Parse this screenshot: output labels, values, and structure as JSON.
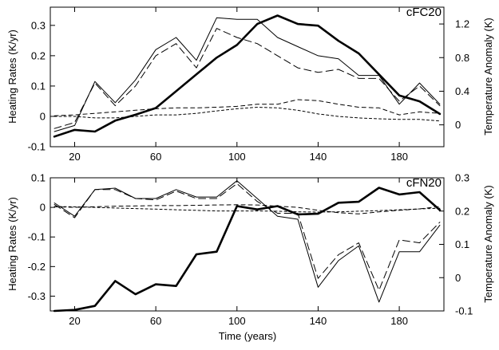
{
  "chart_data": [
    {
      "type": "line",
      "title": "cFC20",
      "xlabel": "",
      "ylabel": "Heating Rates (K/yr)",
      "y2label": "Temperature Anomaly (K)",
      "xlim": [
        8,
        202
      ],
      "ylim": [
        -0.1,
        0.36
      ],
      "y2lim": [
        -0.26,
        1.4
      ],
      "xticks": [
        20,
        60,
        100,
        140,
        180
      ],
      "yticks": [
        -0.1,
        0,
        0.1,
        0.2,
        0.3
      ],
      "ytick_labels": [
        "-0.1",
        "0",
        "0.1",
        "0.2",
        "0.3"
      ],
      "y2ticks": [
        0,
        0.4,
        0.8,
        1.2
      ],
      "y2tick_labels": [
        "0",
        "0.4",
        "0.8",
        "1.2"
      ],
      "grid": false,
      "series": [
        {
          "style": "thin-solid",
          "axis": "left",
          "x": [
            10,
            20,
            30,
            40,
            50,
            60,
            70,
            80,
            90,
            100,
            110,
            120,
            130,
            140,
            150,
            160,
            170,
            180,
            190,
            200
          ],
          "y": [
            -0.05,
            -0.03,
            0.115,
            0.045,
            0.12,
            0.22,
            0.26,
            0.185,
            0.325,
            0.32,
            0.32,
            0.26,
            0.23,
            0.2,
            0.19,
            0.135,
            0.135,
            0.04,
            0.11,
            0.04
          ]
        },
        {
          "style": "long-dash",
          "axis": "left",
          "x": [
            10,
            20,
            30,
            40,
            50,
            60,
            70,
            80,
            90,
            100,
            110,
            120,
            130,
            140,
            150,
            160,
            170,
            180,
            190,
            200
          ],
          "y": [
            -0.04,
            -0.02,
            0.11,
            0.035,
            0.1,
            0.2,
            0.24,
            0.16,
            0.29,
            0.26,
            0.24,
            0.2,
            0.16,
            0.145,
            0.155,
            0.125,
            0.125,
            0.05,
            0.1,
            0.035
          ]
        },
        {
          "style": "short-dash",
          "axis": "left",
          "x": [
            10,
            20,
            30,
            40,
            50,
            60,
            70,
            80,
            90,
            100,
            110,
            120,
            130,
            140,
            150,
            160,
            170,
            180,
            190,
            200
          ],
          "y": [
            0.002,
            0.005,
            0.01,
            0.015,
            0.02,
            0.025,
            0.028,
            0.028,
            0.03,
            0.033,
            0.04,
            0.04,
            0.055,
            0.052,
            0.04,
            0.03,
            0.028,
            0.005,
            0.015,
            0.01
          ]
        },
        {
          "style": "dashed",
          "axis": "left",
          "x": [
            10,
            20,
            30,
            40,
            50,
            60,
            70,
            80,
            90,
            100,
            110,
            120,
            130,
            140,
            150,
            160,
            170,
            180,
            190,
            200
          ],
          "y": [
            0.0,
            0.0,
            -0.005,
            -0.005,
            0.0,
            0.005,
            0.005,
            0.01,
            0.018,
            0.025,
            0.03,
            0.028,
            0.02,
            0.008,
            0.0,
            -0.005,
            -0.008,
            -0.01,
            -0.01,
            -0.015
          ]
        },
        {
          "style": "thick-solid",
          "axis": "right",
          "x": [
            10,
            20,
            30,
            40,
            50,
            60,
            70,
            80,
            90,
            100,
            110,
            120,
            130,
            140,
            150,
            160,
            170,
            180,
            190,
            200
          ],
          "y": [
            -0.14,
            -0.06,
            -0.08,
            0.05,
            0.12,
            0.2,
            0.4,
            0.6,
            0.8,
            0.95,
            1.2,
            1.3,
            1.2,
            1.18,
            1.0,
            0.85,
            0.6,
            0.35,
            0.28,
            0.13
          ]
        }
      ]
    },
    {
      "type": "line",
      "title": "cFN20",
      "xlabel": "Time (years)",
      "ylabel": "Heating Rates (K/yr)",
      "y2label": "Temperature Anomaly (K)",
      "xlim": [
        8,
        202
      ],
      "ylim": [
        -0.35,
        0.1
      ],
      "y2lim": [
        -0.1,
        0.3
      ],
      "xticks": [
        20,
        60,
        100,
        140,
        180
      ],
      "yticks": [
        -0.3,
        -0.2,
        -0.1,
        0,
        0.1
      ],
      "ytick_labels": [
        "-0.3",
        "-0.2",
        "-0.1",
        "0",
        "0.1"
      ],
      "y2ticks": [
        -0.1,
        0,
        0.1,
        0.2,
        0.3
      ],
      "y2tick_labels": [
        "-0.1",
        "0",
        "0.1",
        "0.2",
        "0.3"
      ],
      "grid": false,
      "series": [
        {
          "style": "thin-solid",
          "axis": "left",
          "x": [
            10,
            20,
            30,
            40,
            50,
            60,
            70,
            80,
            90,
            100,
            110,
            120,
            130,
            140,
            150,
            160,
            170,
            180,
            190,
            200
          ],
          "y": [
            0.015,
            -0.03,
            0.06,
            0.065,
            0.03,
            0.03,
            0.06,
            0.035,
            0.035,
            0.09,
            0.03,
            -0.03,
            -0.04,
            -0.27,
            -0.18,
            -0.13,
            -0.32,
            -0.15,
            -0.15,
            -0.06
          ]
        },
        {
          "style": "long-dash",
          "axis": "left",
          "x": [
            10,
            20,
            30,
            40,
            50,
            60,
            70,
            80,
            90,
            100,
            110,
            120,
            130,
            140,
            150,
            160,
            170,
            180,
            190,
            200
          ],
          "y": [
            0.01,
            -0.035,
            0.06,
            0.06,
            0.03,
            0.025,
            0.055,
            0.03,
            0.03,
            0.08,
            0.02,
            -0.02,
            -0.02,
            -0.24,
            -0.16,
            -0.12,
            -0.28,
            -0.11,
            -0.12,
            -0.05
          ]
        },
        {
          "style": "short-dash",
          "axis": "left",
          "x": [
            10,
            20,
            30,
            40,
            50,
            60,
            70,
            80,
            90,
            100,
            110,
            120,
            130,
            140,
            150,
            160,
            170,
            180,
            190,
            200
          ],
          "y": [
            0.002,
            0.0,
            0.002,
            0.004,
            0.005,
            0.006,
            0.006,
            0.007,
            0.008,
            0.009,
            0.008,
            0.004,
            0.0,
            -0.01,
            -0.018,
            -0.022,
            -0.015,
            -0.01,
            -0.005,
            0.003
          ]
        },
        {
          "style": "dashed",
          "axis": "left",
          "x": [
            10,
            20,
            30,
            40,
            50,
            60,
            70,
            80,
            90,
            100,
            110,
            120,
            130,
            140,
            150,
            160,
            170,
            180,
            190,
            200
          ],
          "y": [
            0.003,
            0.002,
            0.0,
            -0.002,
            -0.004,
            -0.006,
            -0.008,
            -0.01,
            -0.012,
            -0.012,
            -0.012,
            -0.013,
            -0.015,
            -0.016,
            -0.015,
            -0.013,
            -0.011,
            -0.008,
            -0.005,
            -0.003
          ]
        },
        {
          "style": "thick-solid",
          "axis": "right",
          "x": [
            10,
            20,
            30,
            40,
            50,
            60,
            70,
            80,
            90,
            100,
            110,
            120,
            130,
            140,
            150,
            160,
            170,
            180,
            190,
            200
          ],
          "y": [
            -0.1,
            -0.097,
            -0.085,
            -0.01,
            -0.05,
            -0.02,
            -0.025,
            0.07,
            0.078,
            0.215,
            0.205,
            0.215,
            0.19,
            0.192,
            0.225,
            0.228,
            0.27,
            0.25,
            0.257,
            0.203
          ]
        }
      ]
    }
  ]
}
